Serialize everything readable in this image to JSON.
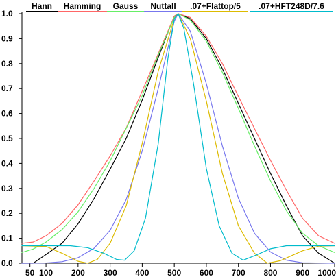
{
  "chart_data": {
    "type": "line",
    "title": "",
    "xlabel": "",
    "ylabel": "",
    "xlim": [
      25,
      1000
    ],
    "ylim": [
      0,
      1.0
    ],
    "grid": false,
    "legend_placement": "top",
    "x_ticks": [
      50,
      100,
      200,
      300,
      400,
      500,
      600,
      700,
      800,
      900,
      1000
    ],
    "y_ticks": [
      0.0,
      0.1,
      0.2,
      0.3,
      0.4,
      0.5,
      0.6,
      0.7,
      0.8,
      0.9,
      1.0
    ],
    "y_tick_labels": [
      "0.0",
      "0.1",
      "0.2",
      "0.3",
      "0.4",
      "0.5",
      "0.6",
      "0.7",
      "0.8",
      "0.9",
      "1.0"
    ],
    "x_tick_labels": [
      "50",
      "100",
      "200",
      "300",
      "400",
      "500",
      "600",
      "700",
      "800",
      "900",
      "1000"
    ],
    "series": [
      {
        "name": "Hann",
        "color": "#000000",
        "points": [
          [
            25,
            0.0
          ],
          [
            60,
            0.0
          ],
          [
            100,
            0.035
          ],
          [
            150,
            0.08
          ],
          [
            200,
            0.158
          ],
          [
            250,
            0.259
          ],
          [
            300,
            0.377
          ],
          [
            350,
            0.5
          ],
          [
            400,
            0.654
          ],
          [
            450,
            0.825
          ],
          [
            500,
            0.99
          ],
          [
            512,
            1.0
          ],
          [
            550,
            0.98
          ],
          [
            600,
            0.9
          ],
          [
            650,
            0.78
          ],
          [
            700,
            0.64
          ],
          [
            750,
            0.5
          ],
          [
            800,
            0.36
          ],
          [
            850,
            0.23
          ],
          [
            900,
            0.11
          ],
          [
            950,
            0.04
          ],
          [
            1000,
            0.0
          ]
        ]
      },
      {
        "name": "Hamming",
        "color": "#ff6666",
        "points": [
          [
            25,
            0.08
          ],
          [
            60,
            0.085
          ],
          [
            100,
            0.11
          ],
          [
            150,
            0.16
          ],
          [
            200,
            0.234
          ],
          [
            250,
            0.33
          ],
          [
            300,
            0.43
          ],
          [
            350,
            0.542
          ],
          [
            400,
            0.69
          ],
          [
            450,
            0.84
          ],
          [
            500,
            0.99
          ],
          [
            512,
            1.0
          ],
          [
            550,
            0.985
          ],
          [
            600,
            0.91
          ],
          [
            650,
            0.8
          ],
          [
            700,
            0.668
          ],
          [
            750,
            0.54
          ],
          [
            800,
            0.412
          ],
          [
            850,
            0.292
          ],
          [
            900,
            0.18
          ],
          [
            950,
            0.11
          ],
          [
            1000,
            0.08
          ]
        ]
      },
      {
        "name": "Gauss",
        "color": "#66ee66",
        "points": [
          [
            25,
            0.043
          ],
          [
            60,
            0.057
          ],
          [
            100,
            0.085
          ],
          [
            150,
            0.135
          ],
          [
            200,
            0.206
          ],
          [
            250,
            0.3
          ],
          [
            300,
            0.41
          ],
          [
            350,
            0.54
          ],
          [
            400,
            0.672
          ],
          [
            450,
            0.835
          ],
          [
            500,
            0.985
          ],
          [
            512,
            1.0
          ],
          [
            550,
            0.975
          ],
          [
            600,
            0.89
          ],
          [
            650,
            0.765
          ],
          [
            700,
            0.62
          ],
          [
            750,
            0.47
          ],
          [
            800,
            0.33
          ],
          [
            850,
            0.21
          ],
          [
            900,
            0.12
          ],
          [
            950,
            0.07
          ],
          [
            1000,
            0.043
          ]
        ]
      },
      {
        "name": "Nuttall",
        "color": "#7777ee",
        "points": [
          [
            25,
            0.0
          ],
          [
            100,
            0.001
          ],
          [
            150,
            0.006
          ],
          [
            200,
            0.022
          ],
          [
            250,
            0.06
          ],
          [
            300,
            0.132
          ],
          [
            350,
            0.255
          ],
          [
            400,
            0.45
          ],
          [
            450,
            0.7
          ],
          [
            500,
            0.97
          ],
          [
            512,
            1.0
          ],
          [
            550,
            0.93
          ],
          [
            600,
            0.72
          ],
          [
            650,
            0.47
          ],
          [
            700,
            0.26
          ],
          [
            750,
            0.12
          ],
          [
            800,
            0.045
          ],
          [
            850,
            0.012
          ],
          [
            900,
            0.002
          ],
          [
            1000,
            0.0
          ]
        ]
      },
      {
        "name": ".07+Flattop/5",
        "color": "#ddbb00",
        "points": [
          [
            25,
            0.07
          ],
          [
            100,
            0.067
          ],
          [
            150,
            0.04
          ],
          [
            200,
            0.008
          ],
          [
            230,
            0.0
          ],
          [
            260,
            0.015
          ],
          [
            300,
            0.08
          ],
          [
            350,
            0.23
          ],
          [
            400,
            0.48
          ],
          [
            450,
            0.77
          ],
          [
            500,
            0.98
          ],
          [
            512,
            1.0
          ],
          [
            550,
            0.9
          ],
          [
            600,
            0.65
          ],
          [
            650,
            0.36
          ],
          [
            700,
            0.15
          ],
          [
            750,
            0.04
          ],
          [
            790,
            0.0
          ],
          [
            830,
            0.01
          ],
          [
            900,
            0.05
          ],
          [
            950,
            0.068
          ],
          [
            1000,
            0.07
          ]
        ]
      },
      {
        "name": ".07+HFT248D/7.6",
        "color": "#00bbcc",
        "points": [
          [
            25,
            0.07
          ],
          [
            100,
            0.07
          ],
          [
            175,
            0.07
          ],
          [
            230,
            0.062
          ],
          [
            280,
            0.04
          ],
          [
            320,
            0.015
          ],
          [
            345,
            0.012
          ],
          [
            375,
            0.05
          ],
          [
            410,
            0.18
          ],
          [
            450,
            0.48
          ],
          [
            480,
            0.82
          ],
          [
            500,
            0.98
          ],
          [
            512,
            1.0
          ],
          [
            530,
            0.94
          ],
          [
            560,
            0.72
          ],
          [
            600,
            0.38
          ],
          [
            640,
            0.15
          ],
          [
            680,
            0.04
          ],
          [
            715,
            0.012
          ],
          [
            750,
            0.03
          ],
          [
            800,
            0.058
          ],
          [
            850,
            0.07
          ],
          [
            1000,
            0.07
          ]
        ]
      }
    ]
  }
}
